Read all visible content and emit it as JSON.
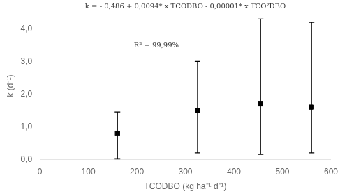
{
  "chart_data": {
    "type": "scatter",
    "x": [
      160,
      325,
      455,
      560
    ],
    "values": [
      0.8,
      1.5,
      1.7,
      1.6
    ],
    "yerr_upper": [
      0.65,
      1.5,
      2.6,
      2.6
    ],
    "yerr_lower": [
      0.8,
      1.3,
      1.55,
      1.4
    ],
    "color": "black",
    "marker": "square",
    "xlabel": "TCODBO (kg ha⁻¹ d⁻¹)",
    "ylabel": "k (d⁻¹)",
    "annotations": [
      "k = - 0,486 + 0,0094* x TCODBO - 0,00001* x TCO²DBO",
      "R² = 99,99%"
    ],
    "xlim": [
      0,
      600
    ],
    "ylim": [
      0.0,
      4.5
    ],
    "xticks": [
      0,
      100,
      200,
      300,
      400,
      500,
      600
    ],
    "yticks": [
      {
        "value": 0.0,
        "label": "0,0"
      },
      {
        "value": 1.0,
        "label": "1,0"
      },
      {
        "value": 2.0,
        "label": "2,0"
      },
      {
        "value": 3.0,
        "label": "3,0"
      },
      {
        "value": 4.0,
        "label": "4,0"
      }
    ],
    "grid": false
  }
}
